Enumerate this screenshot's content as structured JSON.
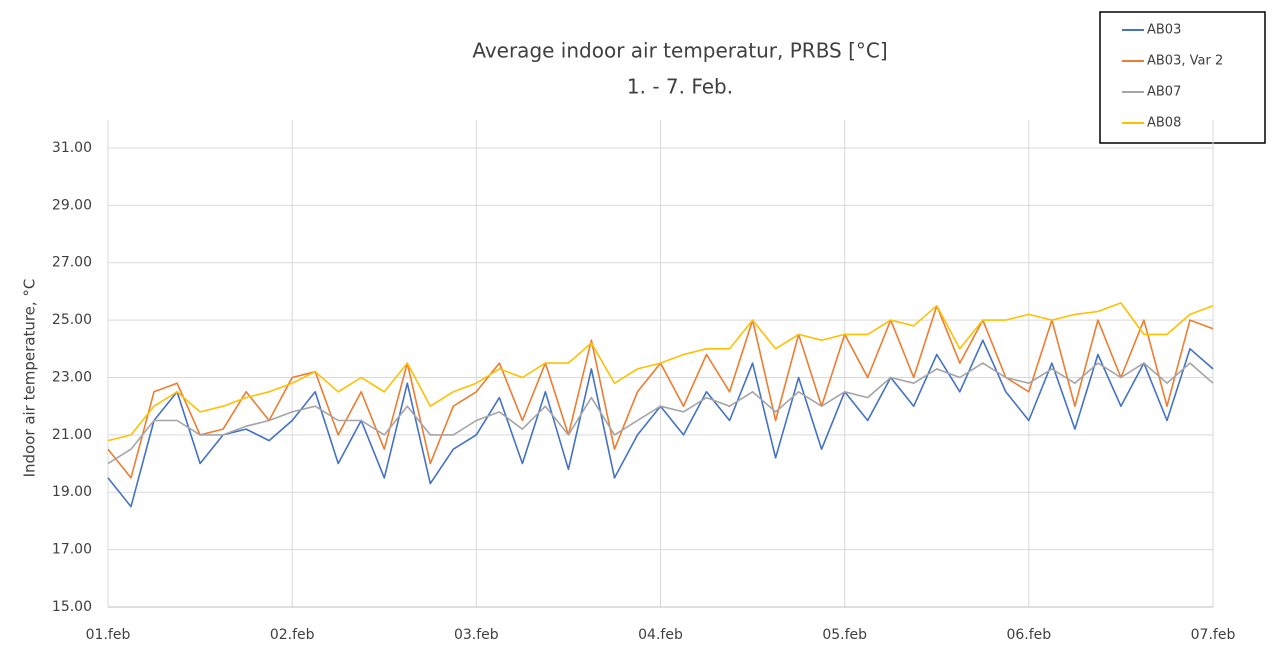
{
  "chart_data": {
    "type": "line",
    "title": "Average indoor air temperatur, PRBS [°C]",
    "subtitle": "1. - 7. Feb.",
    "y_label": "Indoor air temperature, °C",
    "x": [
      0,
      0.125,
      0.25,
      0.375,
      0.5,
      0.625,
      0.75,
      0.875,
      1,
      1.125,
      1.25,
      1.375,
      1.5,
      1.625,
      1.75,
      1.875,
      2,
      2.125,
      2.25,
      2.375,
      2.5,
      2.625,
      2.75,
      2.875,
      3,
      3.125,
      3.25,
      3.375,
      3.5,
      3.625,
      3.75,
      3.875,
      4,
      4.125,
      4.25,
      4.375,
      4.5,
      4.625,
      4.75,
      4.875,
      5,
      5.125,
      5.25,
      5.375,
      5.5,
      5.625,
      5.75,
      5.875,
      6
    ],
    "xlim": [
      0,
      6
    ],
    "xticks": [
      {
        "value": 0,
        "label": "01.feb"
      },
      {
        "value": 1,
        "label": "02.feb"
      },
      {
        "value": 2,
        "label": "03.feb"
      },
      {
        "value": 3,
        "label": "04.feb"
      },
      {
        "value": 4,
        "label": "05.feb"
      },
      {
        "value": 5,
        "label": "06.feb"
      },
      {
        "value": 6,
        "label": "07.feb"
      }
    ],
    "ylim": [
      15,
      31.5
    ],
    "yticks": [
      {
        "value": 15,
        "label": "15.00"
      },
      {
        "value": 17,
        "label": "17.00"
      },
      {
        "value": 19,
        "label": "19.00"
      },
      {
        "value": 21,
        "label": "21.00"
      },
      {
        "value": 23,
        "label": "23.00"
      },
      {
        "value": 25,
        "label": "25.00"
      },
      {
        "value": 27,
        "label": "27.00"
      },
      {
        "value": 29,
        "label": "29.00"
      },
      {
        "value": 31,
        "label": "31.00"
      }
    ],
    "grid": true,
    "legend": "top-right",
    "series": [
      {
        "name": "AB03",
        "color": "#4472c4",
        "values": [
          19.5,
          18.5,
          21.5,
          22.5,
          20.0,
          21.0,
          21.2,
          20.8,
          21.5,
          22.5,
          20.0,
          21.5,
          19.5,
          22.8,
          19.3,
          20.5,
          21.0,
          22.3,
          20.0,
          22.5,
          19.8,
          23.3,
          19.5,
          21.0,
          22.0,
          21.0,
          22.5,
          21.5,
          23.5,
          20.2,
          23.0,
          20.5,
          22.5,
          21.5,
          23.0,
          22.0,
          23.8,
          22.5,
          24.3,
          22.5,
          21.5,
          23.5,
          21.2,
          23.8,
          22.0,
          23.5,
          21.5,
          24.0,
          23.3
        ]
      },
      {
        "name": "AB03, Var 2",
        "color": "#ed7d31",
        "values": [
          20.5,
          19.5,
          22.5,
          22.8,
          21.0,
          21.2,
          22.5,
          21.5,
          23.0,
          23.2,
          21.0,
          22.5,
          20.5,
          23.5,
          20.0,
          22.0,
          22.5,
          23.5,
          21.5,
          23.5,
          21.0,
          24.3,
          20.5,
          22.5,
          23.5,
          22.0,
          23.8,
          22.5,
          25.0,
          21.5,
          24.5,
          22.0,
          24.5,
          23.0,
          25.0,
          23.0,
          25.5,
          23.5,
          25.0,
          23.0,
          22.5,
          25.0,
          22.0,
          25.0,
          23.0,
          25.0,
          22.0,
          25.0,
          24.7
        ]
      },
      {
        "name": "AB07",
        "color": "#a5a5a5",
        "values": [
          20.0,
          20.5,
          21.5,
          21.5,
          21.0,
          21.0,
          21.3,
          21.5,
          21.8,
          22.0,
          21.5,
          21.5,
          21.0,
          22.0,
          21.0,
          21.0,
          21.5,
          21.8,
          21.2,
          22.0,
          21.0,
          22.3,
          21.0,
          21.5,
          22.0,
          21.8,
          22.3,
          22.0,
          22.5,
          21.8,
          22.5,
          22.0,
          22.5,
          22.3,
          23.0,
          22.8,
          23.3,
          23.0,
          23.5,
          23.0,
          22.8,
          23.3,
          22.8,
          23.5,
          23.0,
          23.5,
          22.8,
          23.5,
          22.8
        ]
      },
      {
        "name": "AB08",
        "color": "#ffc000",
        "values": [
          20.8,
          21.0,
          22.0,
          22.5,
          21.8,
          22.0,
          22.3,
          22.5,
          22.8,
          23.2,
          22.5,
          23.0,
          22.5,
          23.5,
          22.0,
          22.5,
          22.8,
          23.3,
          23.0,
          23.5,
          23.5,
          24.2,
          22.8,
          23.3,
          23.5,
          23.8,
          24.0,
          24.0,
          25.0,
          24.0,
          24.5,
          24.3,
          24.5,
          24.5,
          25.0,
          24.8,
          25.5,
          24.0,
          25.0,
          25.0,
          25.2,
          25.0,
          25.2,
          25.3,
          25.6,
          24.5,
          24.5,
          25.2,
          25.5
        ]
      }
    ]
  }
}
